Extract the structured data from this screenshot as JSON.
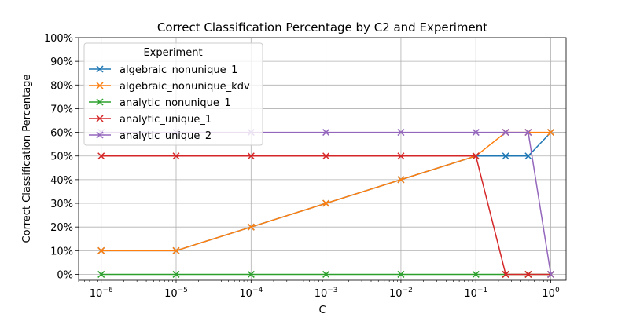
{
  "chart_data": {
    "type": "line",
    "title": "Correct Classification Percentage by C2 and Experiment",
    "xlabel": "C",
    "ylabel": "Correct Classification Percentage",
    "xscale": "log",
    "xlim": [
      5e-07,
      1.6
    ],
    "ylim": [
      -2.5,
      100
    ],
    "grid": true,
    "legend_title": "Experiment",
    "legend_position": "upper-left",
    "x_ticks": [
      {
        "value": 1e-06,
        "base": "10",
        "exp": "−6"
      },
      {
        "value": 1e-05,
        "base": "10",
        "exp": "−5"
      },
      {
        "value": 0.0001,
        "base": "10",
        "exp": "−4"
      },
      {
        "value": 0.001,
        "base": "10",
        "exp": "−3"
      },
      {
        "value": 0.01,
        "base": "10",
        "exp": "−2"
      },
      {
        "value": 0.1,
        "base": "10",
        "exp": "−1"
      },
      {
        "value": 1,
        "base": "10",
        "exp": "0"
      }
    ],
    "y_ticks": [
      {
        "value": 0,
        "label": "0%"
      },
      {
        "value": 10,
        "label": "10%"
      },
      {
        "value": 20,
        "label": "20%"
      },
      {
        "value": 30,
        "label": "30%"
      },
      {
        "value": 40,
        "label": "40%"
      },
      {
        "value": 50,
        "label": "50%"
      },
      {
        "value": 60,
        "label": "60%"
      },
      {
        "value": 70,
        "label": "70%"
      },
      {
        "value": 80,
        "label": "80%"
      },
      {
        "value": 90,
        "label": "90%"
      },
      {
        "value": 100,
        "label": "100%"
      }
    ],
    "x": [
      1e-06,
      1e-05,
      0.0001,
      0.001,
      0.01,
      0.1,
      0.25,
      0.5,
      1
    ],
    "series": [
      {
        "name": "algebraic_nonunique_1",
        "color": "#1f77b4",
        "values": [
          10,
          10,
          20,
          30,
          40,
          50,
          50,
          50,
          60
        ]
      },
      {
        "name": "algebraic_nonunique_kdv",
        "color": "#ff7f0e",
        "values": [
          10,
          10,
          20,
          30,
          40,
          50,
          60,
          60,
          60
        ]
      },
      {
        "name": "analytic_nonunique_1",
        "color": "#2ca02c",
        "values": [
          0,
          0,
          0,
          0,
          0,
          0,
          0,
          0,
          0
        ]
      },
      {
        "name": "analytic_unique_1",
        "color": "#d62728",
        "values": [
          50,
          50,
          50,
          50,
          50,
          50,
          0,
          0,
          0
        ]
      },
      {
        "name": "analytic_unique_2",
        "color": "#9467bd",
        "values": [
          60,
          60,
          60,
          60,
          60,
          60,
          60,
          60,
          0
        ]
      }
    ]
  }
}
